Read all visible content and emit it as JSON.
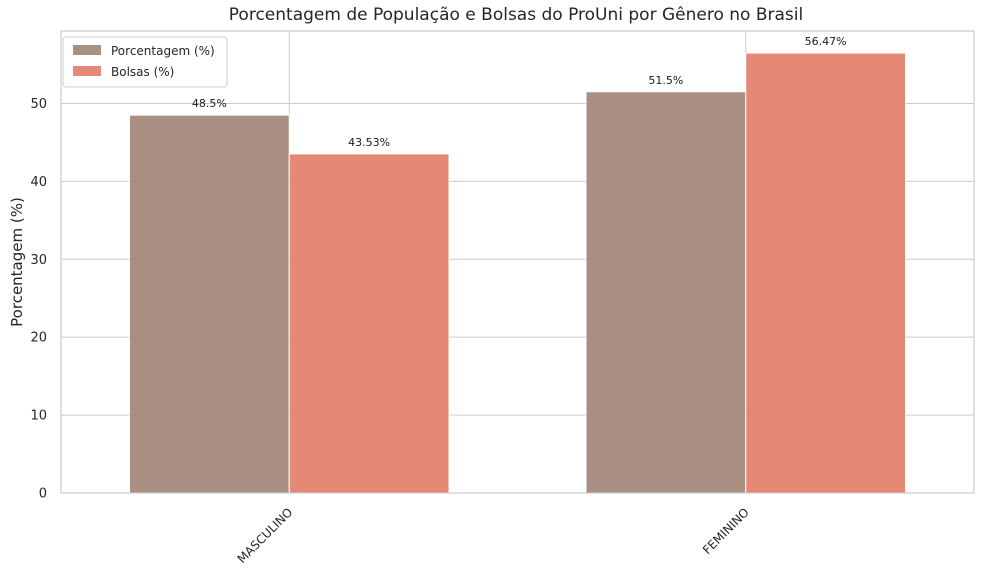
{
  "chart_data": {
    "type": "bar",
    "title": "Porcentagem de População e Bolsas do ProUni por Gênero no Brasil",
    "xlabel": "",
    "ylabel": "Porcentagem (%)",
    "categories": [
      "MASCULINO",
      "FEMININO"
    ],
    "series": [
      {
        "name": "Porcentagem (%)",
        "values": [
          48.5,
          51.5
        ],
        "labels": [
          "48.5%",
          "51.5%"
        ],
        "color": "#a08474"
      },
      {
        "name": "Bolsas (%)",
        "values": [
          43.53,
          56.47
        ],
        "labels": [
          "43.53%",
          "56.47%"
        ],
        "color": "#e27c67"
      }
    ],
    "ylim": [
      0,
      59.3
    ],
    "yticks": [
      0,
      10,
      20,
      30,
      40,
      50
    ],
    "grid": true,
    "legend_position": "top-left"
  }
}
